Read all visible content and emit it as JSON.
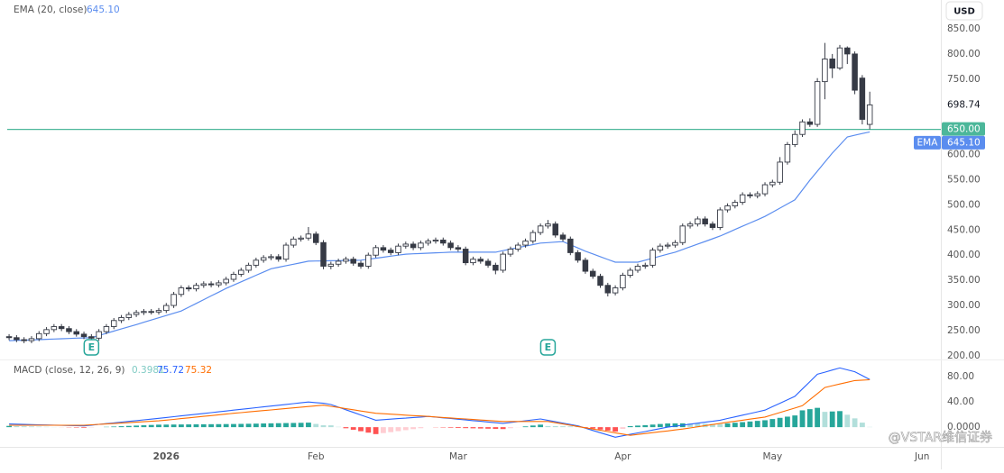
{
  "chart_data": [
    {
      "type": "candlestick",
      "currency": "USD",
      "xlim": [
        -0.25,
        124.5
      ],
      "ylim": [
        194.4,
        907.3
      ],
      "yticks": [
        {
          "value": 200,
          "label": "200.00"
        },
        {
          "value": 250,
          "label": "250.00"
        },
        {
          "value": 300,
          "label": "300.00"
        },
        {
          "value": 350,
          "label": "350.00"
        },
        {
          "value": 400,
          "label": "400.00"
        },
        {
          "value": 450,
          "label": "450.00"
        },
        {
          "value": 500,
          "label": "500.00"
        },
        {
          "value": 550,
          "label": "550.00"
        },
        {
          "value": 600,
          "label": "600.00"
        },
        {
          "value": 750,
          "label": "750.00"
        },
        {
          "value": 800,
          "label": "800.00"
        },
        {
          "value": 850,
          "label": "850.00"
        }
      ],
      "candles": {
        "up_color": "#ffffff",
        "down_color": "#363a45",
        "wick_color": "#363a45",
        "open": [
          238,
          236,
          232,
          230,
          234,
          244,
          252,
          258,
          254,
          248,
          243,
          238,
          235,
          248,
          258,
          270,
          276,
          282,
          286,
          288,
          287,
          290,
          300,
          322,
          335,
          333,
          340,
          343,
          341,
          345,
          352,
          362,
          370,
          380,
          390,
          395,
          397,
          392,
          420,
          432,
          434,
          442,
          425,
          378,
          382,
          388,
          392,
          384,
          378,
          400,
          415,
          410,
          405,
          418,
          422,
          415,
          424,
          428,
          430,
          424,
          415,
          412,
          385,
          392,
          388,
          380,
          370,
          402,
          412,
          420,
          428,
          445,
          458,
          462,
          440,
          432,
          405,
          390,
          368,
          358,
          340,
          325,
          335,
          360,
          370,
          378,
          380,
          410,
          418,
          420,
          425,
          458,
          462,
          472,
          462,
          455,
          490,
          498,
          505,
          520,
          518,
          522,
          540,
          545,
          585,
          620,
          640,
          665,
          660,
          745,
          790,
          772,
          812,
          800,
          752,
          660
        ],
        "high": [
          243,
          241,
          237,
          239,
          249,
          257,
          263,
          263,
          259,
          253,
          248,
          243,
          253,
          263,
          275,
          281,
          287,
          291,
          293,
          293,
          295,
          305,
          327,
          340,
          340,
          345,
          348,
          348,
          350,
          357,
          367,
          375,
          385,
          395,
          400,
          402,
          402,
          425,
          437,
          439,
          456,
          447,
          430,
          387,
          393,
          397,
          397,
          389,
          405,
          420,
          420,
          415,
          423,
          427,
          427,
          429,
          433,
          435,
          435,
          429,
          420,
          417,
          397,
          397,
          393,
          385,
          407,
          417,
          425,
          433,
          450,
          463,
          470,
          467,
          445,
          437,
          410,
          395,
          373,
          363,
          345,
          340,
          365,
          375,
          383,
          385,
          415,
          423,
          425,
          430,
          463,
          467,
          477,
          477,
          467,
          495,
          503,
          510,
          525,
          525,
          527,
          545,
          550,
          595,
          625,
          648,
          670,
          672,
          752,
          822,
          800,
          818,
          815,
          805,
          758,
          725
        ],
        "low": [
          231,
          227,
          225,
          225,
          229,
          239,
          247,
          249,
          243,
          238,
          233,
          230,
          230,
          243,
          253,
          265,
          271,
          277,
          281,
          282,
          282,
          285,
          295,
          317,
          328,
          328,
          335,
          336,
          336,
          340,
          347,
          357,
          365,
          375,
          385,
          390,
          387,
          387,
          415,
          427,
          429,
          420,
          372,
          372,
          377,
          383,
          379,
          373,
          373,
          395,
          405,
          400,
          400,
          413,
          410,
          410,
          419,
          423,
          419,
          410,
          407,
          380,
          380,
          383,
          375,
          362,
          365,
          397,
          407,
          415,
          423,
          440,
          453,
          435,
          427,
          400,
          385,
          363,
          353,
          335,
          318,
          320,
          330,
          355,
          365,
          373,
          375,
          405,
          413,
          415,
          420,
          453,
          457,
          457,
          450,
          450,
          485,
          493,
          500,
          513,
          513,
          517,
          535,
          540,
          580,
          615,
          635,
          655,
          655,
          710,
          752,
          768,
          780,
          720,
          660,
          650
        ],
        "close": [
          236,
          232,
          230,
          234,
          244,
          252,
          258,
          254,
          248,
          243,
          238,
          235,
          248,
          258,
          270,
          276,
          282,
          286,
          288,
          287,
          290,
          300,
          322,
          335,
          333,
          340,
          343,
          341,
          345,
          352,
          362,
          370,
          380,
          390,
          395,
          397,
          392,
          420,
          432,
          434,
          442,
          425,
          378,
          382,
          388,
          392,
          384,
          378,
          400,
          415,
          410,
          405,
          418,
          422,
          415,
          424,
          428,
          430,
          424,
          415,
          412,
          385,
          392,
          388,
          380,
          370,
          402,
          412,
          420,
          428,
          445,
          458,
          462,
          440,
          432,
          405,
          390,
          368,
          358,
          340,
          325,
          335,
          360,
          370,
          378,
          380,
          410,
          418,
          420,
          425,
          458,
          462,
          472,
          462,
          455,
          490,
          498,
          505,
          520,
          518,
          522,
          540,
          545,
          585,
          620,
          640,
          665,
          660,
          745,
          790,
          772,
          812,
          800,
          728,
          670,
          698.74
        ]
      },
      "overlays": [
        {
          "name": "EMA (20, close)",
          "tag": "EMA",
          "color": "#5b8def",
          "last_label": "645.10",
          "values": [
            230,
            230.5,
            231,
            231.5,
            232,
            232.7,
            233.3,
            233.8,
            234.4,
            235,
            235.5,
            236,
            240.3,
            244.7,
            249,
            253.3,
            257.7,
            262,
            266.5,
            271,
            275.5,
            280,
            284.5,
            289,
            296.5,
            304,
            311.5,
            319,
            326.5,
            334,
            340.5,
            347,
            353.5,
            360,
            366.5,
            373,
            376,
            379,
            382,
            385,
            388,
            388.3,
            388.6,
            388.9,
            389.1,
            389.4,
            389.7,
            390,
            392,
            394,
            396,
            398,
            400,
            402,
            402.7,
            403.3,
            404,
            404.7,
            405.3,
            406,
            406,
            406,
            406,
            406,
            406,
            406,
            409,
            412,
            415,
            418,
            421,
            424,
            425,
            426,
            427,
            420.7,
            414.3,
            408,
            402.5,
            397,
            391.5,
            386,
            386,
            386,
            386,
            390,
            394,
            398,
            402,
            406,
            411.3,
            416.7,
            422,
            427.3,
            432.7,
            438,
            444.5,
            451,
            457.5,
            464,
            470.5,
            477,
            485.3,
            493.5,
            501.8,
            510,
            529.5,
            549,
            567,
            585,
            603,
            619,
            635,
            638.4,
            641.8,
            645.1
          ]
        }
      ],
      "hline": {
        "value": 650,
        "label": "650.00",
        "color": "#4cb79a"
      },
      "annotations": [
        {
          "label": "E",
          "x": 11
        },
        {
          "label": "E",
          "x": 72
        }
      ]
    },
    {
      "type": "macd",
      "legend_title": "MACD (close, 12, 26, 9)",
      "xlim": [
        -0.25,
        124.5
      ],
      "ylim": [
        -37,
        106
      ],
      "xticks": [
        {
          "value": 21,
          "label": "2026"
        },
        {
          "value": 41,
          "label": "Feb"
        },
        {
          "value": 60,
          "label": "Mar"
        },
        {
          "value": 82,
          "label": "Apr"
        },
        {
          "value": 102,
          "label": "May"
        },
        {
          "value": 122,
          "label": "Jun"
        }
      ],
      "yticks": [
        {
          "value": 0,
          "label": "0.0000"
        },
        {
          "value": 40,
          "label": "40.00"
        },
        {
          "value": 80,
          "label": "80.00"
        }
      ],
      "histogram": {
        "color": "#80cbc4",
        "colors": [
          "#26a69a",
          "#b2dfdb",
          "#ffcdd2",
          "#ff5252"
        ],
        "values": [
          2,
          1.7,
          1.4,
          1.1,
          0.8,
          0.5,
          0.2,
          -0.1,
          -0.4,
          -0.7,
          -1,
          -0.5,
          0,
          0.5,
          1,
          1.5,
          2,
          2.5,
          3,
          3.5,
          4,
          4.1,
          4.2,
          4.3,
          4.4,
          4.5,
          4.6,
          4.7,
          4.8,
          4.9,
          5,
          5.2,
          5.4,
          5.6,
          5.9,
          6.1,
          6.3,
          6.5,
          6.7,
          6.9,
          7.2,
          5.1,
          3,
          2.9,
          0.5,
          -1.7,
          -4.1,
          -6.4,
          -8.7,
          -11,
          -9.4,
          -7.9,
          -6.3,
          -4.7,
          -3.1,
          -1.6,
          0,
          -0.3,
          -0.6,
          -0.9,
          -1.2,
          -1.5,
          -1.8,
          -2.1,
          -2.4,
          -2.7,
          -3,
          -1.6,
          -0.2,
          1.2,
          2.6,
          4,
          1.8,
          1.6,
          1.4,
          1.2,
          1,
          -0.6,
          -2.2,
          -3.8,
          -5.4,
          -7,
          -2.7,
          1.6,
          2.5,
          3.2,
          4.1,
          5,
          5.9,
          6,
          6.1,
          5.9,
          5.7,
          5.5,
          5.2,
          5,
          6,
          7,
          8,
          9,
          10,
          11,
          12.9,
          14.8,
          16.7,
          18.6,
          26.7,
          28.6,
          30.7,
          24.3,
          24.9,
          25.5,
          19.7,
          14,
          7.2,
          0.3981
        ]
      },
      "macd": {
        "color": "#2962ff",
        "values": [
          5,
          4.7,
          4.4,
          4.1,
          3.8,
          3.5,
          3.2,
          2.9,
          2.6,
          2.3,
          2,
          3.2,
          4.4,
          5.6,
          6.8,
          8,
          9.2,
          10.4,
          11.6,
          12.8,
          14,
          15.3,
          16.6,
          17.9,
          19.2,
          20.5,
          21.8,
          23.1,
          24.4,
          25.7,
          27,
          28.3,
          29.6,
          30.9,
          32.2,
          33.5,
          34.8,
          36.1,
          37.4,
          38.7,
          40,
          39,
          38,
          36,
          31.8,
          27.7,
          23.5,
          19.3,
          15.2,
          11,
          11.9,
          12.7,
          13.6,
          14.4,
          15.3,
          16.1,
          17,
          15.9,
          14.8,
          13.7,
          12.6,
          11.5,
          10.4,
          9.3,
          8.2,
          7.1,
          6,
          7.4,
          8.8,
          10.2,
          11.6,
          13,
          10.8,
          8.6,
          6.4,
          4.2,
          2,
          -1.6,
          -5.2,
          -8.8,
          -12.4,
          -16,
          -13.7,
          -11.4,
          -9.1,
          -6.9,
          -4.6,
          -2.3,
          0,
          1.6,
          3.1,
          4.7,
          6.3,
          7.9,
          9.4,
          11,
          13.7,
          16.3,
          19,
          21.7,
          24.3,
          27,
          32.5,
          38,
          43.5,
          49,
          60.7,
          72.3,
          84,
          87.3,
          90.7,
          94,
          91,
          88,
          81.9,
          75.72
        ]
      },
      "signal": {
        "color": "#ff6d00",
        "values": [
          3,
          3,
          3,
          3,
          3,
          3,
          3,
          3,
          3,
          3,
          3,
          3.7,
          4.4,
          5.1,
          5.8,
          6.5,
          7.2,
          7.9,
          8.6,
          9.3,
          10,
          11.2,
          12.4,
          13.6,
          14.8,
          16,
          17.2,
          18.4,
          19.6,
          20.8,
          22,
          23.1,
          24.2,
          25.3,
          26.3,
          27.4,
          28.5,
          29.6,
          30.7,
          31.8,
          32.8,
          33.9,
          35,
          33.1,
          31.3,
          29.4,
          27.6,
          25.7,
          23.9,
          22,
          21.3,
          20.6,
          19.9,
          19.1,
          18.4,
          17.7,
          17,
          16.2,
          15.4,
          14.6,
          13.8,
          13,
          12.2,
          11.4,
          10.6,
          9.8,
          9,
          9,
          9,
          9,
          9,
          9,
          9,
          7,
          5,
          3,
          1,
          -1,
          -3,
          -5,
          -7,
          -9,
          -11,
          -13,
          -11.6,
          -10.1,
          -8.7,
          -7.3,
          -5.9,
          -4.4,
          -3,
          -1.2,
          0.6,
          2.4,
          4.2,
          6,
          7.7,
          9.3,
          11,
          12.7,
          14.3,
          16,
          19.6,
          23.2,
          26.8,
          30.4,
          34,
          43.7,
          53.3,
          63,
          65.8,
          68.5,
          71.3,
          74,
          74.7,
          75.32
        ]
      }
    }
  ],
  "watermark": "@VSTAR维信证券"
}
